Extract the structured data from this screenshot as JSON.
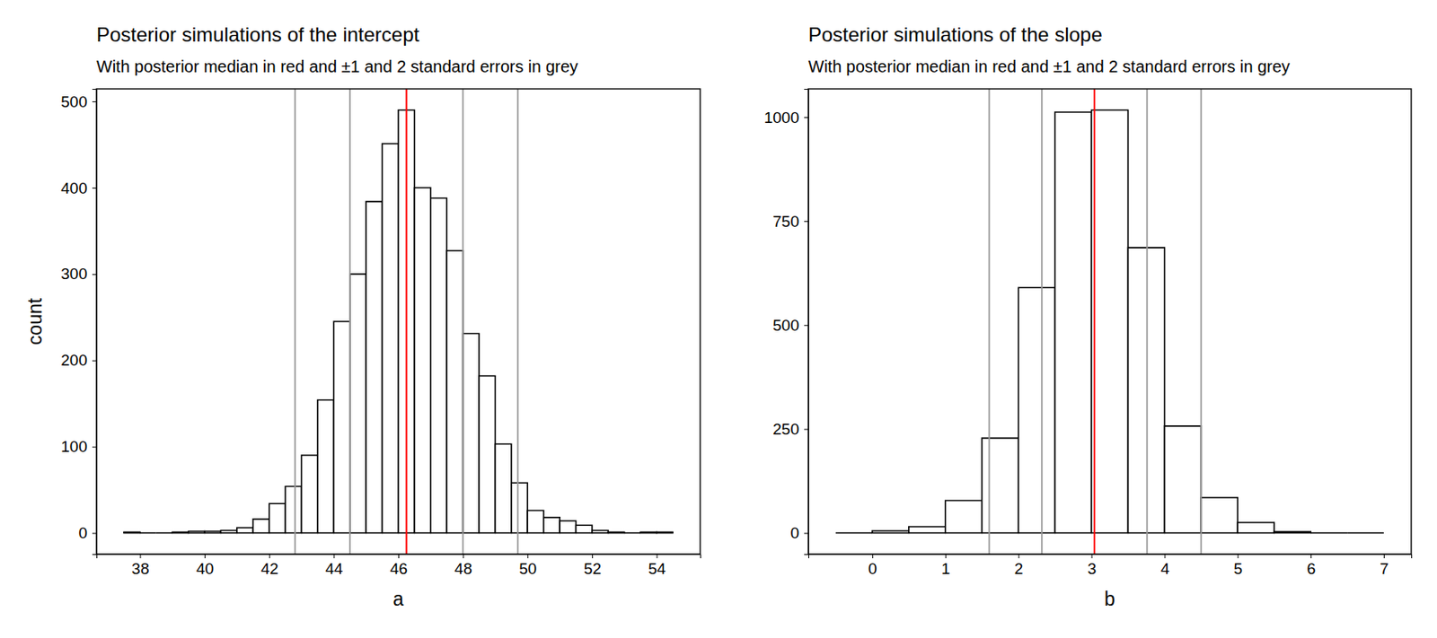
{
  "chart_data": [
    {
      "type": "histogram",
      "title": "Posterior simulations of the intercept",
      "subtitle": "With posterior median in red and ±1 and 2 standard errors in grey",
      "x_label": "a",
      "y_label": "count",
      "bins": [
        37.5,
        38,
        38.5,
        39,
        39.5,
        40,
        40.5,
        41,
        41.5,
        42,
        42.5,
        43,
        43.5,
        44,
        44.5,
        45,
        45.5,
        46,
        46.5,
        47,
        47.5,
        48,
        48.5,
        49,
        49.5,
        50,
        50.5,
        51,
        51.5,
        52,
        52.5,
        53,
        53.5,
        54,
        54.5
      ],
      "values": [
        1,
        0,
        0,
        1,
        2,
        2,
        3,
        6,
        16,
        34,
        54,
        90,
        154,
        245,
        300,
        384,
        451,
        490,
        400,
        388,
        327,
        231,
        182,
        103,
        58,
        26,
        18,
        14,
        9,
        3,
        1,
        0,
        1,
        1
      ],
      "color": "#000000",
      "median": {
        "value": 46.25,
        "color": "#ff0000"
      },
      "se_lines": {
        "values": [
          42.8,
          44.5,
          48.0,
          49.7
        ],
        "color": "#999999"
      },
      "xlim": [
        36.65,
        55.35
      ],
      "xticks": [
        38,
        40,
        42,
        44,
        46,
        48,
        50,
        52,
        54
      ],
      "ylim": [
        -24.5,
        514.5
      ],
      "yticks": [
        0,
        100,
        200,
        300,
        400,
        500
      ],
      "grid": false
    },
    {
      "type": "histogram",
      "title": "Posterior simulations of the slope",
      "subtitle": "With posterior median in red and ±1 and 2 standard errors in grey",
      "x_label": "b",
      "bins": [
        -0.5,
        0,
        0.5,
        1,
        1.5,
        2,
        2.5,
        3,
        3.5,
        4,
        4.5,
        5,
        5.5,
        6,
        6.5,
        7
      ],
      "values": [
        0,
        5,
        15,
        78,
        228,
        590,
        1012,
        1017,
        686,
        257,
        85,
        25,
        3,
        0,
        0
      ],
      "color": "#000000",
      "median": {
        "value": 3.04,
        "color": "#ff0000"
      },
      "se_lines": {
        "values": [
          1.6,
          2.32,
          3.76,
          4.5
        ],
        "color": "#999999"
      },
      "xlim": [
        -0.875,
        7.375
      ],
      "xticks": [
        0,
        1,
        2,
        3,
        4,
        5,
        6,
        7
      ],
      "ylim": [
        -50.85,
        1067.85
      ],
      "yticks": [
        0,
        250,
        500,
        750,
        1000
      ],
      "grid": false
    }
  ]
}
